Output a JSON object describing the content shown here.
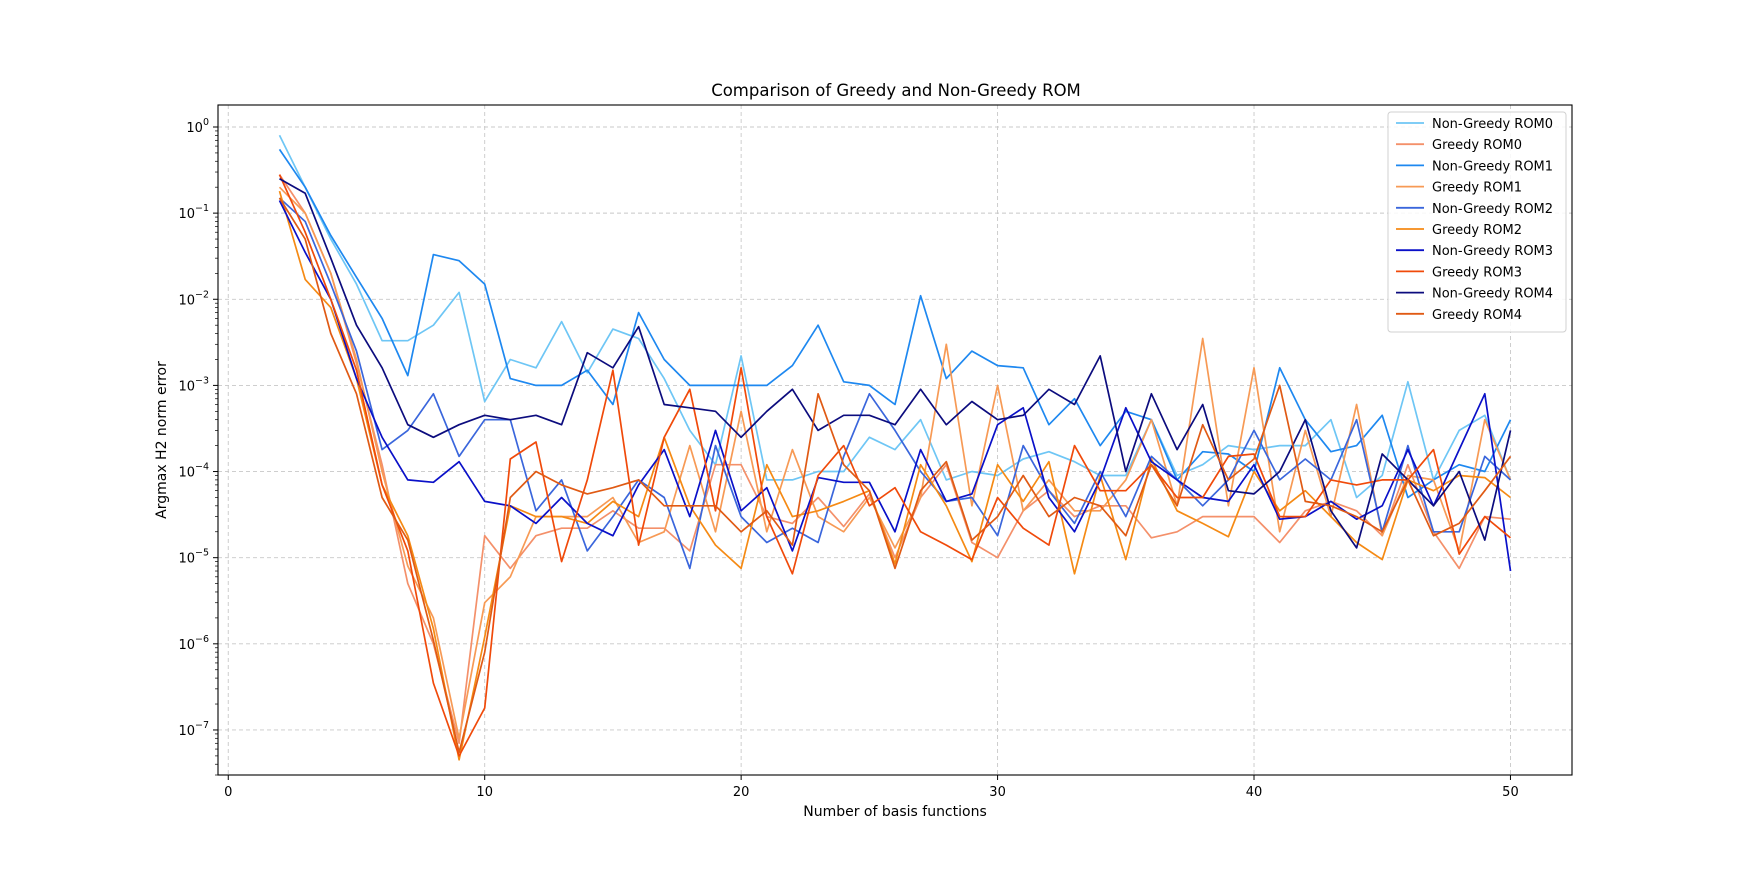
{
  "chart_data": {
    "type": "line",
    "title": "Comparison of Greedy and Non-Greedy ROM",
    "xlabel": "Number of basis functions",
    "ylabel": "Argmax H2 norm error",
    "xlim": [
      -0.4,
      52.4
    ],
    "ylim": [
      3e-08,
      1.8
    ],
    "yscale": "log",
    "x_ticks": [
      0,
      10,
      20,
      30,
      40,
      50
    ],
    "x_tick_labels": [
      "0",
      "10",
      "20",
      "30",
      "40",
      "50"
    ],
    "y_ticks": [
      1e-07,
      1e-06,
      1e-05,
      0.0001,
      0.001,
      0.01,
      0.1,
      1
    ],
    "y_tick_labels": [
      {
        "base": "10",
        "exp": "−7"
      },
      {
        "base": "10",
        "exp": "−6"
      },
      {
        "base": "10",
        "exp": "−5"
      },
      {
        "base": "10",
        "exp": "−4"
      },
      {
        "base": "10",
        "exp": "−3"
      },
      {
        "base": "10",
        "exp": "−2"
      },
      {
        "base": "10",
        "exp": "−1"
      },
      {
        "base": "10",
        "exp": "0"
      }
    ],
    "grid": true,
    "legend_position": "top-right",
    "x": [
      2,
      3,
      4,
      5,
      6,
      7,
      8,
      9,
      10,
      11,
      12,
      13,
      14,
      15,
      16,
      17,
      18,
      19,
      20,
      21,
      22,
      23,
      24,
      25,
      26,
      27,
      28,
      29,
      30,
      31,
      32,
      33,
      34,
      35,
      36,
      37,
      38,
      39,
      40,
      41,
      42,
      43,
      44,
      45,
      46,
      47,
      48,
      49,
      50
    ],
    "series": [
      {
        "name": "Non-Greedy ROM0",
        "color": "#6ec6f5",
        "values": [
          0.8,
          0.2,
          0.05,
          0.015,
          0.0033,
          0.0033,
          0.005,
          0.012,
          0.00065,
          0.002,
          0.0016,
          0.0055,
          0.0014,
          0.0045,
          0.0035,
          0.0012,
          0.0003,
          0.00012,
          0.0022,
          8e-05,
          8e-05,
          0.0001,
          0.0001,
          0.00025,
          0.00018,
          0.0004,
          8e-05,
          0.0001,
          9e-05,
          0.00014,
          0.00017,
          0.00013,
          9e-05,
          9e-05,
          0.0004,
          9e-05,
          0.00012,
          0.0002,
          0.00018,
          0.0002,
          0.0002,
          0.0004,
          5e-05,
          9e-05,
          0.0011,
          8e-05,
          0.0003,
          0.00045,
          8e-05
        ]
      },
      {
        "name": "Greedy ROM0",
        "color": "#f4906a",
        "values": [
          0.28,
          0.1,
          0.02,
          0.0018,
          0.00012,
          5e-06,
          1e-06,
          7e-08,
          1.8e-05,
          7.5e-06,
          1.8e-05,
          2.2e-05,
          2.2e-05,
          3.5e-05,
          2.2e-05,
          2.2e-05,
          1.2e-05,
          0.00012,
          0.00012,
          3e-05,
          2.5e-05,
          5e-05,
          2.3e-05,
          5.5e-05,
          1e-05,
          5e-05,
          0.00012,
          1.5e-05,
          1e-05,
          3.5e-05,
          6e-05,
          3e-05,
          4e-05,
          4e-05,
          1.7e-05,
          2e-05,
          3e-05,
          3e-05,
          3e-05,
          1.5e-05,
          3.5e-05,
          4.5e-05,
          3.5e-05,
          1.8e-05,
          0.00012,
          2e-05,
          7.5e-06,
          3e-05,
          2.8e-05
        ]
      },
      {
        "name": "Non-Greedy ROM1",
        "color": "#1e88f0",
        "values": [
          0.55,
          0.2,
          0.055,
          0.018,
          0.006,
          0.0013,
          0.033,
          0.028,
          0.015,
          0.0012,
          0.001,
          0.001,
          0.0015,
          0.0006,
          0.007,
          0.002,
          0.001,
          0.001,
          0.001,
          0.001,
          0.0017,
          0.005,
          0.0011,
          0.001,
          0.0006,
          0.011,
          0.0012,
          0.0025,
          0.0017,
          0.0016,
          0.00035,
          0.0007,
          0.0002,
          0.0005,
          0.0004,
          8e-05,
          0.00017,
          0.00016,
          0.0001,
          0.0016,
          0.0004,
          0.00017,
          0.0002,
          0.00045,
          5e-05,
          8e-05,
          0.00012,
          0.0001,
          0.0004
        ]
      },
      {
        "name": "Greedy ROM1",
        "color": "#f79a55",
        "values": [
          0.2,
          0.1,
          0.02,
          0.002,
          0.0001,
          8e-06,
          2e-06,
          8e-08,
          3e-06,
          6e-06,
          3e-05,
          3e-05,
          3e-05,
          5e-05,
          1.5e-05,
          2e-05,
          0.0002,
          2e-05,
          0.0005,
          2e-05,
          0.00018,
          3e-05,
          2e-05,
          5e-05,
          1.3e-05,
          5e-05,
          0.003,
          4e-05,
          0.001,
          3.5e-05,
          8e-05,
          3.5e-05,
          3.5e-05,
          8e-05,
          0.0004,
          4e-05,
          0.0035,
          4e-05,
          0.0016,
          2e-05,
          0.0003,
          3e-05,
          0.0006,
          1.8e-05,
          9e-05,
          8e-05,
          1.2e-05,
          0.0004,
          8e-05
        ]
      },
      {
        "name": "Non-Greedy ROM2",
        "color": "#3a66dc",
        "values": [
          0.15,
          0.08,
          0.015,
          0.0025,
          0.00018,
          0.0003,
          0.0008,
          0.00015,
          0.0004,
          0.0004,
          3.5e-05,
          8e-05,
          1.2e-05,
          3e-05,
          8e-05,
          5e-05,
          7.5e-06,
          0.0002,
          3e-05,
          1.5e-05,
          2.2e-05,
          1.5e-05,
          0.00015,
          0.0008,
          0.0003,
          0.0001,
          4.5e-05,
          5e-05,
          1.8e-05,
          0.0002,
          6e-05,
          2.5e-05,
          0.0001,
          3e-05,
          0.00015,
          8e-05,
          4e-05,
          8e-05,
          0.0003,
          8e-05,
          0.00014,
          8e-05,
          0.0004,
          2e-05,
          0.0002,
          2e-05,
          2e-05,
          0.00015,
          8e-05
        ]
      },
      {
        "name": "Greedy ROM2",
        "color": "#f58a14",
        "values": [
          0.18,
          0.017,
          0.008,
          0.0012,
          7e-05,
          1.8e-05,
          1.5e-06,
          4.5e-08,
          1.2e-06,
          4e-05,
          3e-05,
          3e-05,
          2.5e-05,
          4.5e-05,
          3e-05,
          0.00025,
          4e-05,
          1.4e-05,
          7.5e-06,
          0.00012,
          3e-05,
          3.5e-05,
          4.5e-05,
          6e-05,
          8.5e-06,
          0.00012,
          4e-05,
          9e-06,
          0.00012,
          4.5e-05,
          0.00013,
          6.5e-06,
          9e-05,
          9.5e-06,
          0.00014,
          3.5e-05,
          2.5e-05,
          1.75e-05,
          0.0001,
          3.5e-05,
          6e-05,
          3e-05,
          1.5e-05,
          9.5e-06,
          8e-05,
          6e-05,
          9e-05,
          8.5e-05,
          5e-05
        ]
      },
      {
        "name": "Non-Greedy ROM3",
        "color": "#0a10c8",
        "values": [
          0.14,
          0.035,
          0.01,
          0.0012,
          0.00025,
          8e-05,
          7.5e-05,
          0.00013,
          4.5e-05,
          4e-05,
          2.5e-05,
          5e-05,
          2.5e-05,
          1.8e-05,
          7e-05,
          0.00018,
          3e-05,
          0.0003,
          3.5e-05,
          6.5e-05,
          1.2e-05,
          8.5e-05,
          7.5e-05,
          7.5e-05,
          2e-05,
          0.00018,
          4.5e-05,
          5.5e-05,
          0.00035,
          0.00055,
          5e-05,
          2e-05,
          8e-05,
          0.00055,
          0.00013,
          8e-05,
          5e-05,
          4.5e-05,
          0.00012,
          2.8e-05,
          3e-05,
          4.5e-05,
          2.8e-05,
          4e-05,
          0.00018,
          4e-05,
          0.00018,
          0.0008,
          7e-06
        ]
      },
      {
        "name": "Greedy ROM3",
        "color": "#f04a0a",
        "values": [
          0.28,
          0.06,
          0.01,
          0.0015,
          7e-05,
          1.2e-05,
          3.5e-07,
          5e-08,
          1.8e-07,
          0.00014,
          0.00022,
          9e-06,
          8e-05,
          0.0015,
          1.4e-05,
          0.00025,
          0.0009,
          3.5e-05,
          0.0016,
          3e-05,
          6.5e-06,
          9e-05,
          0.0002,
          4e-05,
          6.5e-05,
          2e-05,
          1.4e-05,
          9.5e-06,
          5e-05,
          2.2e-05,
          1.4e-05,
          0.0002,
          6e-05,
          6e-05,
          0.00012,
          5e-05,
          5e-05,
          0.00015,
          0.00016,
          3e-05,
          3e-05,
          8e-05,
          7e-05,
          8e-05,
          8e-05,
          0.00018,
          1.1e-05,
          3e-05,
          1.7e-05
        ]
      },
      {
        "name": "Non-Greedy ROM4",
        "color": "#0c0c7e",
        "values": [
          0.25,
          0.17,
          0.03,
          0.005,
          0.0016,
          0.00035,
          0.00025,
          0.00035,
          0.00045,
          0.0004,
          0.00045,
          0.00035,
          0.0024,
          0.0016,
          0.0048,
          0.0006,
          0.00055,
          0.0005,
          0.00025,
          0.0005,
          0.0009,
          0.0003,
          0.00045,
          0.00045,
          0.00035,
          0.0009,
          0.00035,
          0.00065,
          0.0004,
          0.00045,
          0.0009,
          0.0006,
          0.0022,
          0.0001,
          0.0008,
          0.00018,
          0.0006,
          6e-05,
          5.5e-05,
          0.0001,
          0.0004,
          3.5e-05,
          1.3e-05,
          0.00016,
          8e-05,
          4e-05,
          0.0001,
          1.6e-05,
          0.0003
        ]
      },
      {
        "name": "Greedy ROM4",
        "color": "#e05a14",
        "values": [
          0.15,
          0.05,
          0.004,
          0.0008,
          5e-05,
          1.6e-05,
          1.1e-06,
          5.5e-08,
          8e-07,
          5e-05,
          0.0001,
          7e-05,
          5.5e-05,
          6.5e-05,
          8e-05,
          4e-05,
          4e-05,
          4e-05,
          2e-05,
          3.5e-05,
          1.4e-05,
          0.0008,
          0.00012,
          6e-05,
          7.5e-06,
          6e-05,
          0.00013,
          1.6e-05,
          3e-05,
          9e-05,
          3e-05,
          5e-05,
          4e-05,
          1.8e-05,
          0.00012,
          4e-05,
          0.00035,
          8e-05,
          0.00014,
          0.001,
          4.5e-05,
          4e-05,
          3e-05,
          2e-05,
          8e-05,
          1.8e-05,
          2.5e-05,
          6e-05,
          0.00015
        ]
      }
    ]
  }
}
